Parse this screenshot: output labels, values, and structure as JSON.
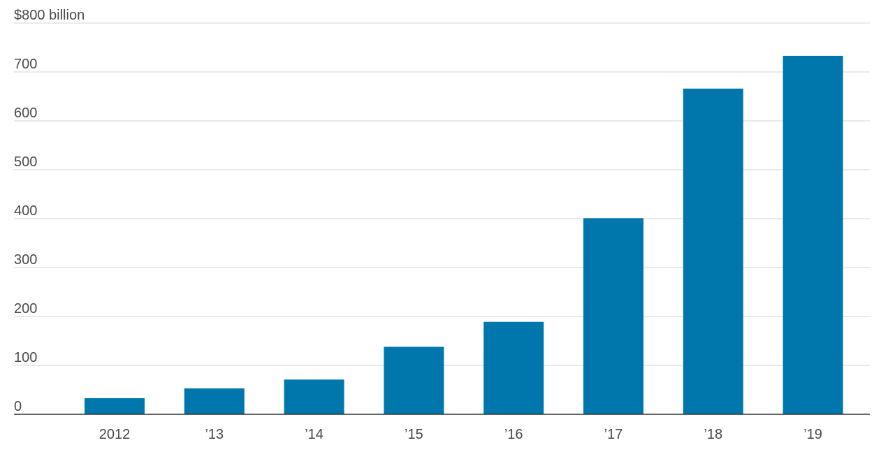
{
  "chart_data": {
    "type": "bar",
    "title": "",
    "xlabel": "",
    "ylabel": "",
    "categories": [
      "2012",
      "’13",
      "’14",
      "’15",
      "’16",
      "’17",
      "’18",
      "’19"
    ],
    "values": [
      33,
      53,
      71,
      138,
      189,
      401,
      666,
      733
    ],
    "ylim": [
      0,
      800
    ],
    "y_ticks": [
      {
        "value": 0,
        "label": "0"
      },
      {
        "value": 100,
        "label": "100"
      },
      {
        "value": 200,
        "label": "200"
      },
      {
        "value": 300,
        "label": "300"
      },
      {
        "value": 400,
        "label": "400"
      },
      {
        "value": 500,
        "label": "500"
      },
      {
        "value": 600,
        "label": "600"
      },
      {
        "value": 700,
        "label": "700"
      },
      {
        "value": 800,
        "label": "$800 billion"
      }
    ],
    "grid": true,
    "legend": "none",
    "colors": {
      "bar": "#0077ac",
      "grid": "#e3e3e3",
      "axis": "#333333",
      "text": "#4a4a4a"
    }
  }
}
